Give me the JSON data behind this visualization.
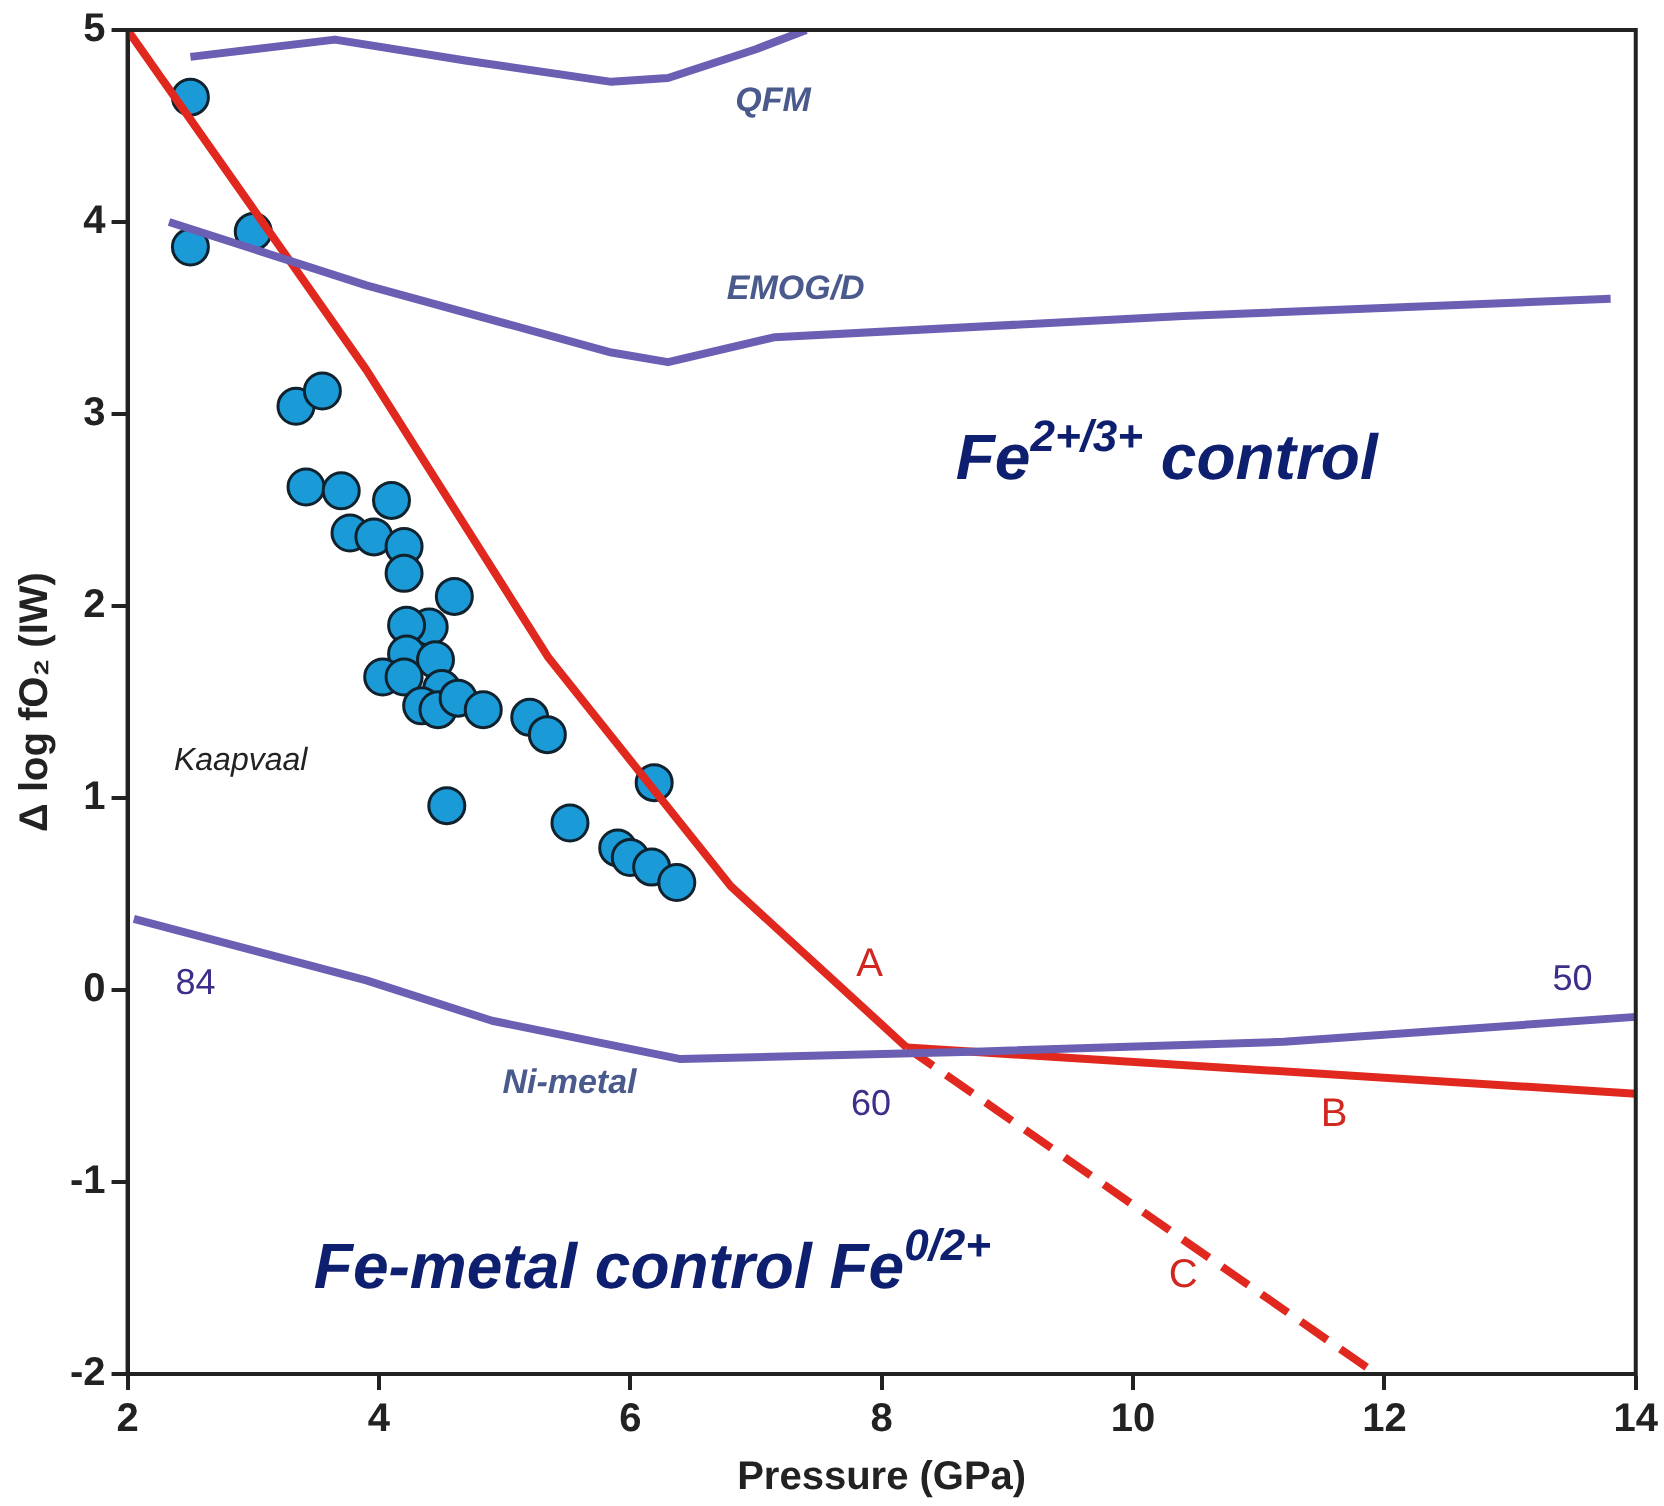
{
  "chart_data": {
    "type": "line",
    "xlabel": "Pressure (GPa)",
    "ylabel": "Δ log fO₂ (IW)",
    "xlim": [
      2,
      14
    ],
    "xticks": [
      2,
      4,
      6,
      8,
      10,
      12,
      14
    ],
    "ylim": [
      -2,
      5
    ],
    "yticks": [
      -2,
      -1,
      0,
      1,
      2,
      3,
      4,
      5
    ],
    "grid": false,
    "legend": false,
    "series": [
      {
        "color": "#6b5fb3",
        "marker": "none",
        "line_style": "solid",
        "x": [
          2.5,
          3.65,
          4.7,
          5.85,
          6.3,
          7.0,
          7.4
        ],
        "values": [
          4.86,
          4.95,
          4.84,
          4.73,
          4.75,
          4.9,
          5.0
        ]
      },
      {
        "color": "#6b5fb3",
        "marker": "none",
        "line_style": "solid",
        "x": [
          2.33,
          3.9,
          5.85,
          6.3,
          7.15,
          10.4,
          13.8
        ],
        "values": [
          4.0,
          3.67,
          3.32,
          3.27,
          3.4,
          3.51,
          3.6
        ]
      },
      {
        "color": "#6b5fb3",
        "marker": "none",
        "line_style": "solid",
        "x": [
          2.05,
          3.9,
          4.9,
          6.4,
          8.8,
          11.2,
          14
        ],
        "values": [
          0.37,
          0.05,
          -0.16,
          -0.36,
          -0.32,
          -0.27,
          -0.14
        ]
      },
      {
        "color": "#e0281e",
        "marker": "none",
        "line_style": "solid",
        "x": [
          2,
          3.9,
          5.35,
          6.8,
          8.2
        ],
        "values": [
          5.0,
          3.23,
          1.73,
          0.54,
          -0.3
        ]
      },
      {
        "color": "#e0281e",
        "marker": "none",
        "line_style": "solid",
        "x": [
          8.2,
          14
        ],
        "values": [
          -0.3,
          -0.54
        ]
      },
      {
        "color": "#e0281e",
        "marker": "none",
        "line_style": "dashed",
        "x": [
          8.2,
          11.87
        ],
        "values": [
          -0.3,
          -1.97
        ]
      },
      {
        "type": "scatter",
        "color": "#1b9ad8",
        "marker": "circle",
        "x": [
          2.5,
          2.5,
          3.0,
          3.34,
          3.55,
          3.42,
          3.7,
          3.77,
          3.96,
          4.1,
          4.2,
          4.2,
          4.6,
          4.4,
          4.22,
          4.22,
          4.45,
          4.03,
          4.2,
          4.5,
          4.34,
          4.47,
          4.63,
          4.83,
          4.54,
          5.2,
          5.34,
          6.19,
          5.52,
          5.9,
          6.0,
          6.17,
          6.37
        ],
        "values": [
          4.65,
          3.87,
          3.95,
          3.04,
          3.12,
          2.62,
          2.6,
          2.38,
          2.36,
          2.55,
          2.31,
          2.17,
          2.05,
          1.89,
          1.9,
          1.75,
          1.72,
          1.63,
          1.63,
          1.57,
          1.48,
          1.46,
          1.52,
          1.46,
          0.96,
          1.42,
          1.33,
          1.08,
          0.87,
          0.74,
          0.69,
          0.64,
          0.56
        ]
      }
    ],
    "annotations": [
      "QFM",
      "EMOG/D",
      "Fe$^{2+/3+}$ control",
      "Kaapvaal",
      "84",
      "Ni-metal",
      "60",
      "50",
      "A",
      "B",
      "C",
      "Fe-metal control Fe$^{0/2+}$"
    ]
  }
}
